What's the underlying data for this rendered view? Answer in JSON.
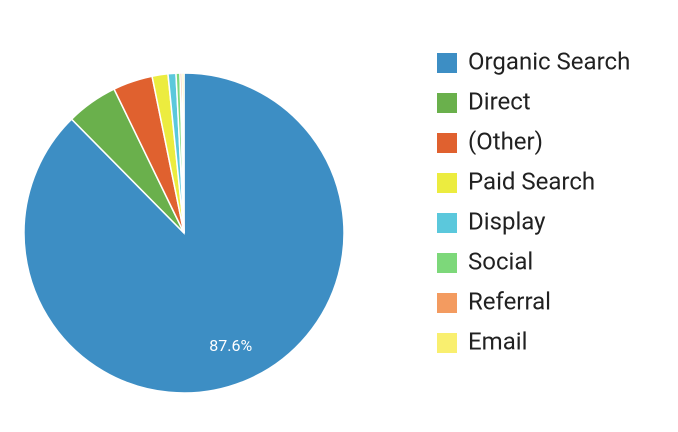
{
  "chart_data": {
    "type": "pie",
    "categories": [
      "Organic Search",
      "Direct",
      "(Other)",
      "Paid Search",
      "Display",
      "Social",
      "Referral",
      "Email"
    ],
    "values": [
      87.6,
      5.2,
      4.0,
      1.6,
      0.8,
      0.4,
      0.2,
      0.2
    ],
    "value_labels": [
      "87.6%",
      null,
      null,
      null,
      null,
      null,
      null,
      null
    ],
    "colors": [
      "#3d8ec4",
      "#6ab04c",
      "#e0612f",
      "#ecec3f",
      "#5bc8dc",
      "#7dd87a",
      "#f39b60",
      "#f9ef6f"
    ],
    "legend": "right"
  }
}
